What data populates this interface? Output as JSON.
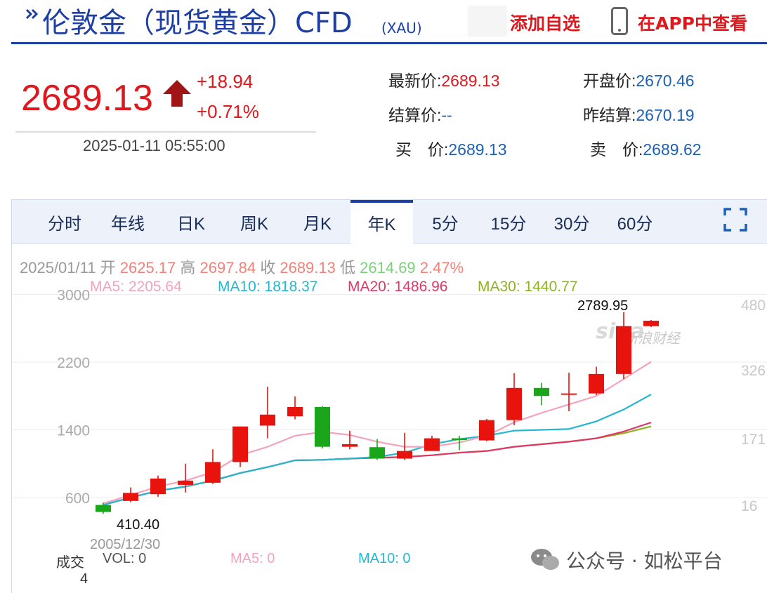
{
  "header": {
    "title": "伦敦金（现货黄金）CFD",
    "subtitle": "(XAU)",
    "add_watchlist": "添加自选",
    "view_in_app": "在APP中查看"
  },
  "quote": {
    "price": "2689.13",
    "change": "+18.94",
    "change_pct": "+0.71%",
    "datetime": "2025-01-11 05:55:00",
    "fields": [
      {
        "label": "最新价:",
        "value": "2689.13",
        "tone": "red"
      },
      {
        "label": "开盘价:",
        "value": "2670.46",
        "tone": "blue"
      },
      {
        "label": "结算价:",
        "value": "--",
        "tone": "blue"
      },
      {
        "label": "昨结算:",
        "value": "2670.19",
        "tone": "blue"
      },
      {
        "label": "买　价:",
        "value": "2689.13",
        "tone": "blue"
      },
      {
        "label": "卖　价:",
        "value": "2689.62",
        "tone": "blue"
      }
    ]
  },
  "tabs": [
    {
      "label": "分时"
    },
    {
      "label": "年线"
    },
    {
      "label": "日K"
    },
    {
      "label": "周K"
    },
    {
      "label": "月K"
    },
    {
      "label": "年K",
      "active": true
    },
    {
      "label": "5分"
    },
    {
      "label": "15分"
    },
    {
      "label": "30分"
    },
    {
      "label": "60分"
    }
  ],
  "ohlc": {
    "date": "2025/01/11",
    "open_label": "开",
    "open": "2625.17",
    "high_label": "高",
    "high": "2697.84",
    "close_label": "收",
    "close": "2689.13",
    "low_label": "低",
    "low": "2614.69",
    "range_pct": "2.47%"
  },
  "ma": {
    "ma5": "MA5: 2205.64",
    "ma10": "MA10: 1818.37",
    "ma20": "MA20: 1486.96",
    "ma30": "MA30: 1440.77"
  },
  "volume": {
    "label": "成交",
    "vol": "VOL: 0",
    "ma5": "MA5: 0",
    "ma10": "MA10: 0",
    "value": "4"
  },
  "colors": {
    "rise": "#e8130d",
    "fall": "#1aa51a",
    "ma5": "#f4a3bd",
    "ma10": "#22b7d2",
    "ma20": "#e03767",
    "ma30": "#8cb41e",
    "brand": "#1d3fa5"
  },
  "watermarks": {
    "sina": "sina",
    "sina_cn": "新浪财经",
    "footer": "公众号 · 如松平台"
  },
  "chart_data": {
    "type": "candlestick",
    "period": "yearly",
    "x_first_label": "2005/12/30",
    "y_ticks": [
      600,
      1400,
      2200,
      3000
    ],
    "right_ticks": [
      "480",
      "326",
      "171",
      "16"
    ],
    "ylim": [
      410,
      3000
    ],
    "max_label": "2789.95",
    "min_label": "410.40",
    "candles": [
      {
        "o": 513,
        "h": 540,
        "l": 410,
        "c": 430
      },
      {
        "o": 560,
        "h": 720,
        "l": 545,
        "c": 655
      },
      {
        "o": 640,
        "h": 860,
        "l": 610,
        "c": 825
      },
      {
        "o": 750,
        "h": 1000,
        "l": 660,
        "c": 800
      },
      {
        "o": 775,
        "h": 1170,
        "l": 760,
        "c": 1020
      },
      {
        "o": 1020,
        "h": 1430,
        "l": 960,
        "c": 1440
      },
      {
        "o": 1450,
        "h": 1910,
        "l": 1300,
        "c": 1580
      },
      {
        "o": 1560,
        "h": 1795,
        "l": 1525,
        "c": 1670
      },
      {
        "o": 1670,
        "h": 1680,
        "l": 1180,
        "c": 1200
      },
      {
        "o": 1200,
        "h": 1390,
        "l": 1170,
        "c": 1230
      },
      {
        "o": 1195,
        "h": 1290,
        "l": 1045,
        "c": 1060
      },
      {
        "o": 1060,
        "h": 1365,
        "l": 1045,
        "c": 1150
      },
      {
        "o": 1150,
        "h": 1330,
        "l": 1160,
        "c": 1300
      },
      {
        "o": 1300,
        "h": 1330,
        "l": 1160,
        "c": 1280
      },
      {
        "o": 1275,
        "h": 1530,
        "l": 1265,
        "c": 1515
      },
      {
        "o": 1515,
        "h": 2070,
        "l": 1455,
        "c": 1895
      },
      {
        "o": 1895,
        "h": 1955,
        "l": 1690,
        "c": 1800
      },
      {
        "o": 1830,
        "h": 2075,
        "l": 1620,
        "c": 1830
      },
      {
        "o": 1830,
        "h": 2145,
        "l": 1810,
        "c": 2060
      },
      {
        "o": 2060,
        "h": 2790,
        "l": 2000,
        "c": 2625
      },
      {
        "o": 2625,
        "h": 2698,
        "l": 2615,
        "c": 2689
      }
    ],
    "ma5": [
      530,
      630,
      730,
      800,
      900,
      1100,
      1200,
      1330,
      1375,
      1340,
      1260,
      1200,
      1200,
      1250,
      1330,
      1490,
      1600,
      1700,
      1800,
      2000,
      2205
    ],
    "ma10": [
      513,
      600,
      680,
      730,
      800,
      890,
      960,
      1040,
      1045,
      1060,
      1080,
      1130,
      1230,
      1290,
      1330,
      1390,
      1400,
      1410,
      1500,
      1640,
      1818
    ],
    "ma20": [
      513,
      600,
      680,
      730,
      800,
      890,
      960,
      1040,
      1045,
      1060,
      1070,
      1080,
      1100,
      1130,
      1150,
      1200,
      1230,
      1260,
      1300,
      1380,
      1487
    ],
    "ma30": [
      513,
      600,
      680,
      730,
      800,
      890,
      960,
      1040,
      1045,
      1060,
      1070,
      1080,
      1100,
      1130,
      1150,
      1200,
      1230,
      1260,
      1300,
      1360,
      1441
    ]
  }
}
